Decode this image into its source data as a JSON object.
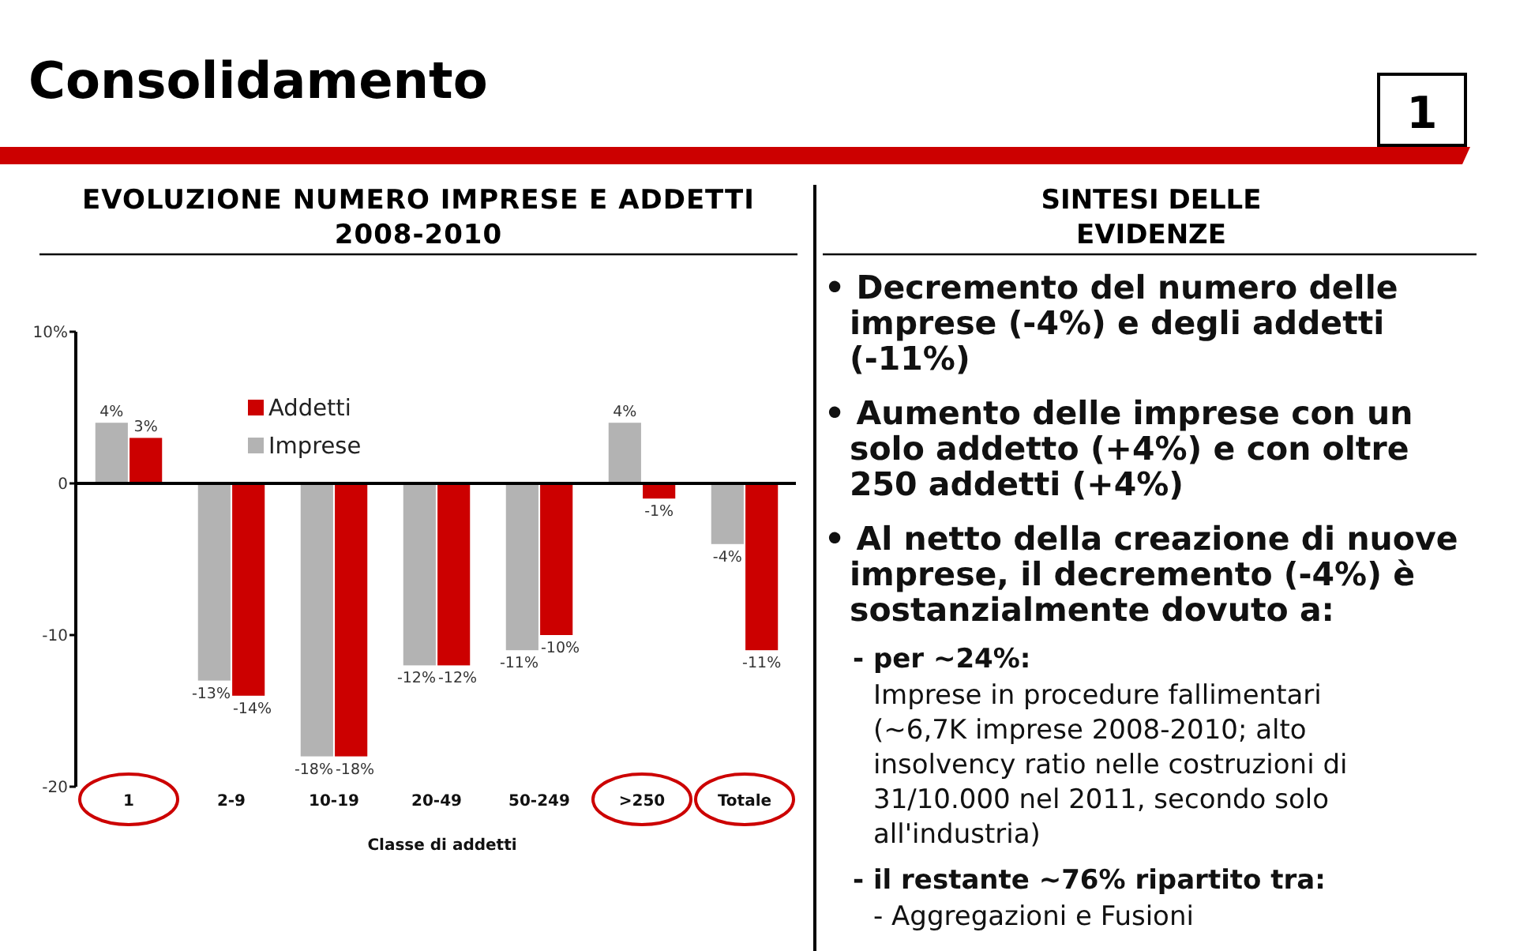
{
  "chart_data": {
    "type": "bar",
    "title": "Consolidamento",
    "subtitle": "EVOLUZIONE NUMERO IMPRESE E ADDETTI 2008-2010",
    "xlabel": "Classe di addetti",
    "categories": [
      "1",
      "2-9",
      "10-19",
      "20-49",
      "50-249",
      ">250",
      "Totale"
    ],
    "series": [
      {
        "name": "Imprese",
        "color": "#b3b3b3",
        "values": [
          4,
          -13,
          -18,
          -12,
          -11,
          4,
          -4
        ],
        "value_labels": [
          "4%",
          "-13%",
          "-18%",
          "-12%",
          "-11%",
          "4%",
          "-4%"
        ]
      },
      {
        "name": "Addetti",
        "color": "#cc0000",
        "values": [
          3,
          -14,
          -18,
          -12,
          -10,
          -1,
          -11
        ],
        "value_labels": [
          "3%",
          "-14%",
          "-18%",
          "-12%",
          "-10%",
          "-1%",
          "-11%"
        ]
      }
    ],
    "ylim": [
      -20,
      10
    ],
    "yticks": [
      {
        "value": 10,
        "label": "10%"
      },
      0,
      -10,
      -20
    ],
    "legend": "top left",
    "annotations": [
      "1",
      "SINTESI DELLE EVIDENZE",
      "• Decremento del numero delle imprese (-4%) e degli addetti (-11%)",
      "• Aumento delle imprese con un solo addetto (+4%) e con oltre 250 addetti (+4%)",
      "• Al netto della creazione di nuove imprese, il decremento (-4%) è sostanzialmente dovuto a:",
      "- per ~24%:",
      "Imprese in procedure fallimentari (~6,7K imprese 2008-2010; alto insolvency ratio nelle costruzioni di 31/10.000 nel 2011, secondo solo all'industria)",
      "- il restante ~76% ripartito tra:",
      "- Aggregazioni e Fusioni"
    ]
  }
}
